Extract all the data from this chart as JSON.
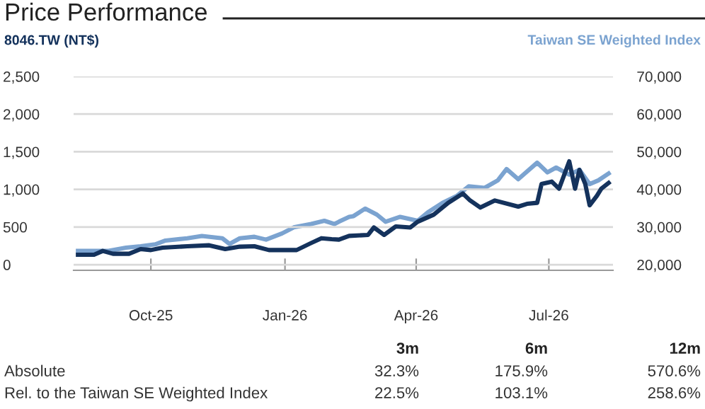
{
  "chart_data": {
    "type": "line",
    "title": "Price Performance",
    "ylabel": "8046.TW (NT$)",
    "y2label": "Taiwan SE Weighted Index",
    "series": [
      {
        "color": "#7ba3d0",
        "axis": "y2",
        "x": [
          "2025-08-12",
          "2025-09-02",
          "2025-09-14",
          "2025-09-24",
          "2025-10-04",
          "2025-10-11",
          "2025-10-26",
          "2025-11-05",
          "2025-11-19",
          "2025-11-24",
          "2025-12-01",
          "2025-12-11",
          "2025-12-19",
          "2025-12-30",
          "2026-01-07",
          "2026-01-19",
          "2026-01-28",
          "2026-02-04",
          "2026-02-07",
          "2026-02-14",
          "2026-02-17",
          "2026-02-25",
          "2026-03-05",
          "2026-03-11",
          "2026-03-21",
          "2026-04-02",
          "2026-04-09",
          "2026-04-19",
          "2026-04-29",
          "2026-05-07",
          "2026-05-18",
          "2026-05-27",
          "2026-06-02",
          "2026-06-10",
          "2026-06-23",
          "2026-06-30",
          "2026-07-06",
          "2026-07-15",
          "2026-07-22",
          "2026-07-29",
          "2026-08-04",
          "2026-08-11"
        ],
        "values": [
          23650,
          23650,
          24500,
          24900,
          25400,
          26400,
          27000,
          27600,
          27000,
          25500,
          27000,
          27400,
          26650,
          28300,
          29900,
          30800,
          31650,
          30800,
          31400,
          32700,
          32900,
          34900,
          33300,
          31400,
          32700,
          31650,
          33900,
          36400,
          38300,
          40800,
          40400,
          42400,
          45400,
          42700,
          47100,
          44500,
          45800,
          43900,
          45200,
          41400,
          42400,
          44200
        ]
      },
      {
        "color": "#14325c",
        "x": [
          "2025-08-12",
          "2025-08-23",
          "2025-08-29",
          "2025-09-05",
          "2025-09-16",
          "2025-09-24",
          "2025-10-01",
          "2025-10-09",
          "2025-10-26",
          "2025-11-10",
          "2025-11-21",
          "2025-12-01",
          "2025-12-11",
          "2025-12-21",
          "2026-01-09",
          "2026-01-19",
          "2026-01-26",
          "2026-02-02",
          "2026-02-07",
          "2026-02-14",
          "2026-02-27",
          "2026-03-03",
          "2026-03-10",
          "2026-03-18",
          "2026-03-28",
          "2026-04-02",
          "2026-04-13",
          "2026-04-23",
          "2026-05-03",
          "2026-05-08",
          "2026-05-15",
          "2026-05-25",
          "2026-06-10",
          "2026-06-16",
          "2026-06-23",
          "2026-06-26",
          "2026-07-03",
          "2026-07-08",
          "2026-07-15",
          "2026-07-19",
          "2026-07-22",
          "2026-07-26",
          "2026-07-29",
          "2026-08-03",
          "2026-08-06",
          "2026-08-11"
        ],
        "values": [
          132,
          132,
          182,
          145,
          145,
          207,
          194,
          226,
          244,
          257,
          207,
          239,
          244,
          194,
          194,
          288,
          351,
          338,
          333,
          382,
          395,
          494,
          395,
          508,
          494,
          570,
          664,
          821,
          945,
          852,
          758,
          852,
          771,
          808,
          821,
          1071,
          1103,
          1009,
          1372,
          1009,
          1259,
          1071,
          789,
          915,
          1009,
          1085
        ]
      }
    ],
    "xlim": [
      "2025-08-09",
      "2026-08-14"
    ],
    "xticks": [
      {
        "value": "2025-10-01",
        "label": "Oct-25"
      },
      {
        "value": "2026-01-01",
        "label": "Jan-26"
      },
      {
        "value": "2026-04-01",
        "label": "Apr-26"
      },
      {
        "value": "2026-07-01",
        "label": "Jul-26"
      }
    ],
    "ylim": [
      -75,
      2500
    ],
    "yticks": [
      {
        "value": 0,
        "label": "0"
      },
      {
        "value": 500,
        "label": "500"
      },
      {
        "value": 1000,
        "label": "1,000"
      },
      {
        "value": 1500,
        "label": "1,500"
      },
      {
        "value": 2000,
        "label": "2,000"
      },
      {
        "value": 2500,
        "label": "2,500"
      }
    ],
    "y2lim": [
      18500,
      70000
    ],
    "y2ticks": [
      {
        "value": 20000,
        "label": "20,000"
      },
      {
        "value": 30000,
        "label": "30,000"
      },
      {
        "value": 40000,
        "label": "40,000"
      },
      {
        "value": 50000,
        "label": "50,000"
      },
      {
        "value": 60000,
        "label": "60,000"
      },
      {
        "value": 70000,
        "label": "70,000"
      }
    ],
    "grid": "y",
    "legend": false,
    "marker": "none",
    "line_style": "solid",
    "annotations": [
      "3m",
      "6m",
      "12m",
      "Absolute",
      "32.3%",
      "175.9%",
      "570.6%",
      "Rel. to the Taiwan SE Weighted Index",
      "22.5%",
      "103.1%",
      "258.6%"
    ]
  }
}
